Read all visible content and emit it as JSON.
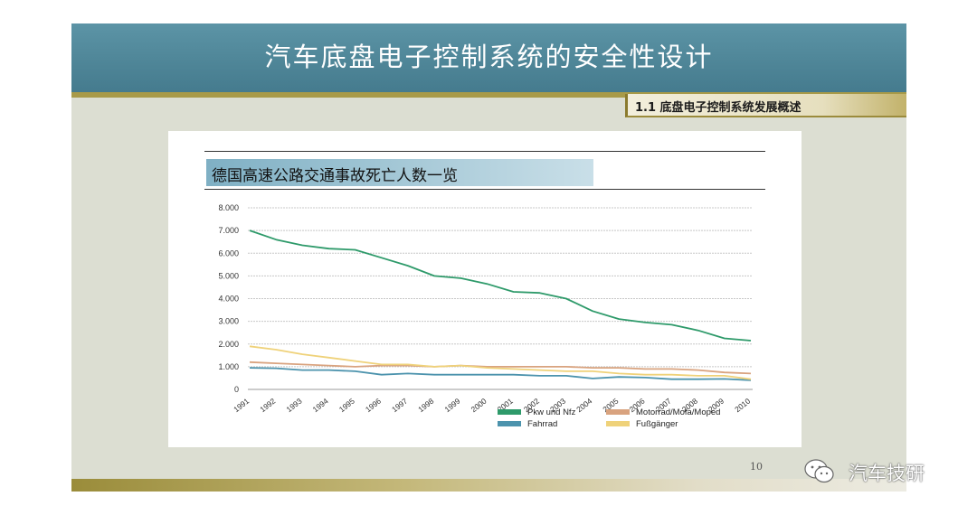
{
  "slide": {
    "title": "汽车底盘电子控制系统的安全性设计",
    "section": "1.1 底盘电子控制系统发展概述",
    "page_number": "10"
  },
  "watermark": {
    "text": "汽车技研",
    "icon": "wechat-icon"
  },
  "colors": {
    "header": "#4f8698",
    "pkw": "#2e9a6a",
    "motorrad": "#d9a37f",
    "fahrrad": "#4c93ad",
    "fussganger": "#efd27a"
  },
  "chart_data": {
    "type": "line",
    "title": "德国高速公路交通事故死亡人数一览",
    "xlabel": "",
    "ylabel": "",
    "x": [
      "1991",
      "1992",
      "1993",
      "1994",
      "1995",
      "1996",
      "1997",
      "1998",
      "1999",
      "2000",
      "2001",
      "2002",
      "2003",
      "2004",
      "2005",
      "2006",
      "2007",
      "2008",
      "2009",
      "2010"
    ],
    "ylim": [
      0,
      8000
    ],
    "yticks": [
      {
        "value": 0,
        "label": "0"
      },
      {
        "value": 1000,
        "label": "1.000"
      },
      {
        "value": 2000,
        "label": "2.000"
      },
      {
        "value": 3000,
        "label": "3.000"
      },
      {
        "value": 4000,
        "label": "4.000"
      },
      {
        "value": 5000,
        "label": "5.000"
      },
      {
        "value": 6000,
        "label": "6.000"
      },
      {
        "value": 7000,
        "label": "7.000"
      },
      {
        "value": 8000,
        "label": "8.000"
      }
    ],
    "grid": true,
    "legend_position": "bottom",
    "series": [
      {
        "name": "Pkw und Nfz",
        "color": "#2e9a6a",
        "values": [
          7000,
          6600,
          6350,
          6200,
          6150,
          5800,
          5450,
          5000,
          4900,
          4650,
          4300,
          4250,
          4000,
          3450,
          3100,
          2950,
          2850,
          2600,
          2250,
          2150
        ]
      },
      {
        "name": "Motorrad/Mofa/Moped",
        "color": "#d9a37f",
        "values": [
          1200,
          1150,
          1100,
          1050,
          1000,
          1050,
          1050,
          1000,
          1050,
          1000,
          1000,
          1000,
          1000,
          950,
          950,
          900,
          900,
          850,
          750,
          700
        ]
      },
      {
        "name": "Fahrrad",
        "color": "#4c93ad",
        "values": [
          950,
          930,
          850,
          850,
          800,
          650,
          700,
          650,
          650,
          650,
          650,
          600,
          600,
          480,
          550,
          520,
          450,
          450,
          460,
          400
        ]
      },
      {
        "name": "Fußgänger",
        "color": "#efd27a",
        "values": [
          1900,
          1750,
          1550,
          1400,
          1250,
          1100,
          1100,
          1000,
          1050,
          950,
          900,
          850,
          800,
          800,
          700,
          650,
          650,
          600,
          600,
          450
        ]
      }
    ]
  }
}
